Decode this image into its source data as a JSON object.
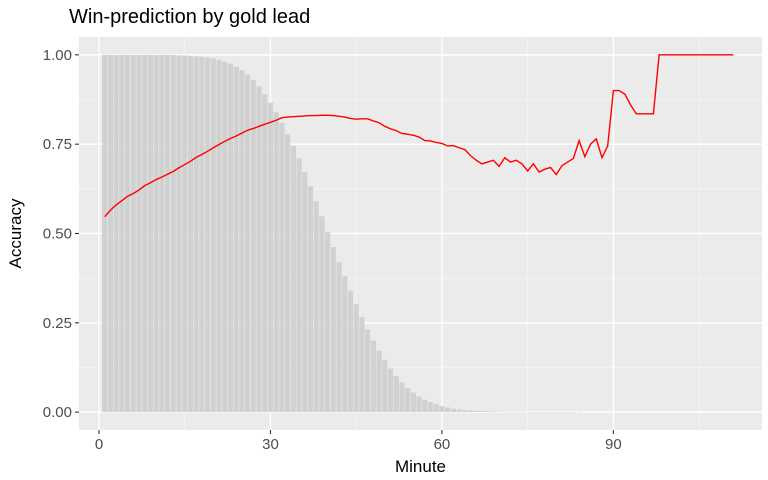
{
  "chart_data": {
    "type": "bar+line",
    "title": "Win-prediction by gold lead",
    "xlabel": "Minute",
    "ylabel": "Accuracy",
    "xlim": [
      -3.5,
      116
    ],
    "ylim": [
      -0.05,
      1.05
    ],
    "x_ticks": [
      0,
      30,
      60,
      90
    ],
    "x_tick_labels": [
      "0",
      "30",
      "60",
      "90"
    ],
    "y_ticks": [
      0,
      0.25,
      0.5,
      0.75,
      1
    ],
    "y_tick_labels": [
      "0.00",
      "0.25",
      "0.50",
      "0.75",
      "1.00"
    ],
    "grid": true,
    "colors": {
      "panel": "#EBEBEB",
      "grid": "#FFFFFF",
      "bars": "#D1D1D1",
      "line": "#FF0000"
    },
    "bars": {
      "x": [
        1,
        2,
        3,
        4,
        5,
        6,
        7,
        8,
        9,
        10,
        11,
        12,
        13,
        14,
        15,
        16,
        17,
        18,
        19,
        20,
        21,
        22,
        23,
        24,
        25,
        26,
        27,
        28,
        29,
        30,
        31,
        32,
        33,
        34,
        35,
        36,
        37,
        38,
        39,
        40,
        41,
        42,
        43,
        44,
        45,
        46,
        47,
        48,
        49,
        50,
        51,
        52,
        53,
        54,
        55,
        56,
        57,
        58,
        59,
        60,
        61,
        62,
        63,
        64,
        65,
        66,
        67,
        68,
        69,
        70,
        71,
        72,
        73,
        74,
        75,
        76,
        77,
        78,
        79,
        80,
        81,
        82,
        83,
        84
      ],
      "values": [
        1.0,
        1.0,
        1.0,
        1.0,
        1.0,
        1.0,
        1.0,
        1.0,
        1.0,
        1.0,
        1.0,
        1.0,
        1.0,
        0.999,
        0.998,
        0.997,
        0.996,
        0.995,
        0.993,
        0.99,
        0.986,
        0.981,
        0.975,
        0.967,
        0.957,
        0.945,
        0.93,
        0.912,
        0.89,
        0.866,
        0.84,
        0.81,
        0.778,
        0.745,
        0.71,
        0.672,
        0.632,
        0.59,
        0.548,
        0.504,
        0.462,
        0.42,
        0.38,
        0.34,
        0.302,
        0.266,
        0.232,
        0.2,
        0.172,
        0.146,
        0.122,
        0.101,
        0.083,
        0.068,
        0.055,
        0.044,
        0.035,
        0.028,
        0.022,
        0.017,
        0.013,
        0.01,
        0.008,
        0.006,
        0.005,
        0.004,
        0.003,
        0.0025,
        0.002,
        0.0015,
        0.0012,
        0.001,
        0.0008,
        0.0006,
        0.0005,
        0.0004,
        0.0003,
        0.0003,
        0.0002,
        0.0002,
        0.0001,
        0.0001,
        0.0001,
        0.0001
      ]
    },
    "line": {
      "x": [
        1,
        2,
        3,
        4,
        5,
        6,
        7,
        8,
        9,
        10,
        11,
        12,
        13,
        14,
        15,
        16,
        17,
        18,
        19,
        20,
        21,
        22,
        23,
        24,
        25,
        26,
        27,
        28,
        29,
        30,
        31,
        32,
        33,
        34,
        35,
        36,
        37,
        38,
        39,
        40,
        41,
        42,
        43,
        44,
        45,
        46,
        47,
        48,
        49,
        50,
        51,
        52,
        53,
        54,
        55,
        56,
        57,
        58,
        59,
        60,
        61,
        62,
        63,
        64,
        65,
        66,
        67,
        68,
        69,
        70,
        71,
        72,
        73,
        74,
        75,
        76,
        77,
        78,
        79,
        80,
        81,
        82,
        83,
        84,
        85,
        86,
        87,
        88,
        89,
        90,
        91,
        92,
        93,
        94,
        95,
        96,
        97,
        98,
        99,
        100,
        101,
        102,
        103,
        104,
        105,
        106,
        107,
        108,
        109,
        110,
        111
      ],
      "values": [
        0.547,
        0.565,
        0.58,
        0.592,
        0.604,
        0.612,
        0.622,
        0.634,
        0.642,
        0.651,
        0.658,
        0.666,
        0.674,
        0.684,
        0.693,
        0.702,
        0.713,
        0.721,
        0.73,
        0.74,
        0.749,
        0.758,
        0.766,
        0.773,
        0.781,
        0.789,
        0.794,
        0.8,
        0.806,
        0.811,
        0.817,
        0.824,
        0.826,
        0.827,
        0.828,
        0.829,
        0.83,
        0.83,
        0.831,
        0.831,
        0.83,
        0.828,
        0.826,
        0.822,
        0.82,
        0.821,
        0.821,
        0.815,
        0.81,
        0.8,
        0.793,
        0.788,
        0.78,
        0.778,
        0.775,
        0.77,
        0.76,
        0.759,
        0.755,
        0.752,
        0.745,
        0.746,
        0.74,
        0.735,
        0.718,
        0.705,
        0.695,
        0.7,
        0.705,
        0.688,
        0.712,
        0.7,
        0.705,
        0.695,
        0.675,
        0.695,
        0.672,
        0.68,
        0.685,
        0.665,
        0.69,
        0.7,
        0.71,
        0.76,
        0.715,
        0.75,
        0.765,
        0.712,
        0.745,
        0.9,
        0.9,
        0.89,
        0.86,
        0.835,
        0.835,
        0.835,
        0.835,
        1.0,
        1.0,
        1.0,
        1.0,
        1.0,
        1.0,
        1.0,
        1.0,
        1.0,
        1.0,
        1.0,
        1.0,
        1.0,
        1.0
      ]
    }
  }
}
